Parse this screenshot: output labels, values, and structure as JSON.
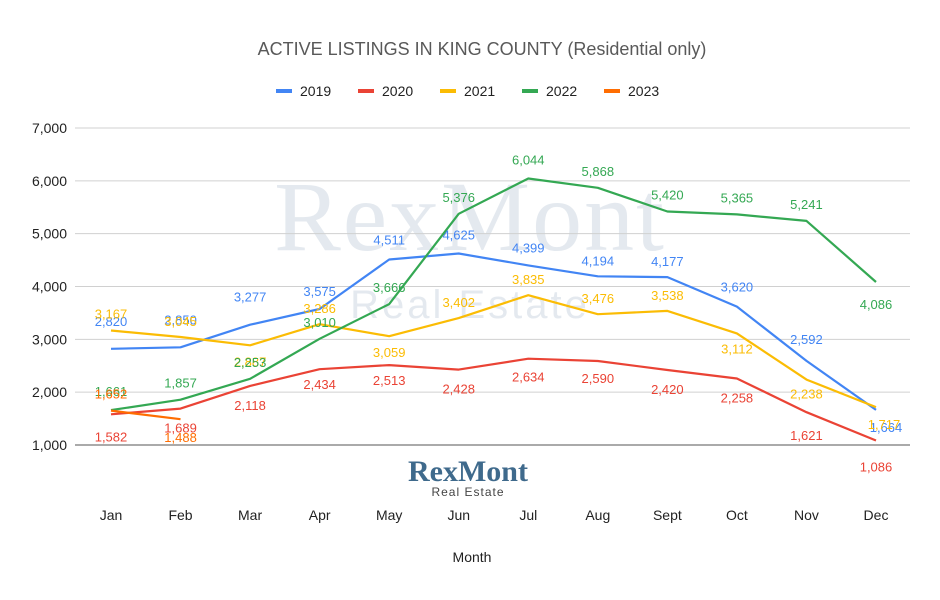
{
  "chart_data": {
    "type": "line",
    "title": "ACTIVE LISTINGS IN KING COUNTY  (Residential only)",
    "xlabel": "Month",
    "ylabel": "",
    "categories": [
      "Jan",
      "Feb",
      "Mar",
      "Apr",
      "May",
      "Jun",
      "Jul",
      "Aug",
      "Sept",
      "Oct",
      "Nov",
      "Dec"
    ],
    "ylim": [
      1000,
      7000
    ],
    "yticks": [
      1000,
      2000,
      3000,
      4000,
      5000,
      6000,
      7000
    ],
    "ytick_labels": [
      "1,000",
      "2,000",
      "3,000",
      "4,000",
      "5,000",
      "6,000",
      "7,000"
    ],
    "grid": true,
    "legend_position": "top",
    "series": [
      {
        "name": "2019",
        "color": "#4285f4",
        "values": [
          2820,
          2850,
          3277,
          3575,
          4511,
          4625,
          4399,
          4194,
          4177,
          3620,
          2592,
          1664
        ],
        "labels": [
          "2,820",
          "2,850",
          "3,277",
          "3,575",
          "4,511",
          "4,625",
          "4,399",
          "4,194",
          "4,177",
          "3,620",
          "2,592",
          "1,664"
        ]
      },
      {
        "name": "2020",
        "color": "#ea4335",
        "values": [
          1582,
          1689,
          2118,
          2434,
          2513,
          2428,
          2634,
          2590,
          2420,
          2258,
          1621,
          1086
        ],
        "labels": [
          "1,582",
          "1,689",
          "2,118",
          "2,434",
          "2,513",
          "2,428",
          "2,634",
          "2,590",
          "2,420",
          "2,258",
          "1,621",
          "1,086"
        ]
      },
      {
        "name": "2021",
        "color": "#fbbc04",
        "values": [
          3167,
          3045,
          2887,
          3286,
          3059,
          3402,
          3835,
          3476,
          3538,
          3112,
          2238,
          1717
        ],
        "labels": [
          "3,167",
          "3,045",
          "2,887",
          "3,286",
          "3,059",
          "3,402",
          "3,835",
          "3,476",
          "3,538",
          "3,112",
          "2,238",
          "1,717"
        ]
      },
      {
        "name": "2022",
        "color": "#34a853",
        "values": [
          1661,
          1857,
          2253,
          3010,
          3666,
          5376,
          6044,
          5868,
          5420,
          5365,
          5241,
          4086
        ],
        "labels": [
          "1,661",
          "1,857",
          "2,253",
          "3,010",
          "3,666",
          "5,376",
          "6,044",
          "5,868",
          "5,420",
          "5,365",
          "5,241",
          "4,086"
        ]
      },
      {
        "name": "2023",
        "color": "#ff6d01",
        "values": [
          1652,
          1488,
          null,
          null,
          null,
          null,
          null,
          null,
          null,
          null,
          null,
          null
        ],
        "labels": [
          "1,652",
          "1,488",
          null,
          null,
          null,
          null,
          null,
          null,
          null,
          null,
          null,
          null
        ]
      }
    ]
  },
  "watermark": {
    "main": "RexMont",
    "sub": "Real Estate"
  },
  "logo": {
    "main": "RexMont",
    "sub": "Real Estate"
  }
}
